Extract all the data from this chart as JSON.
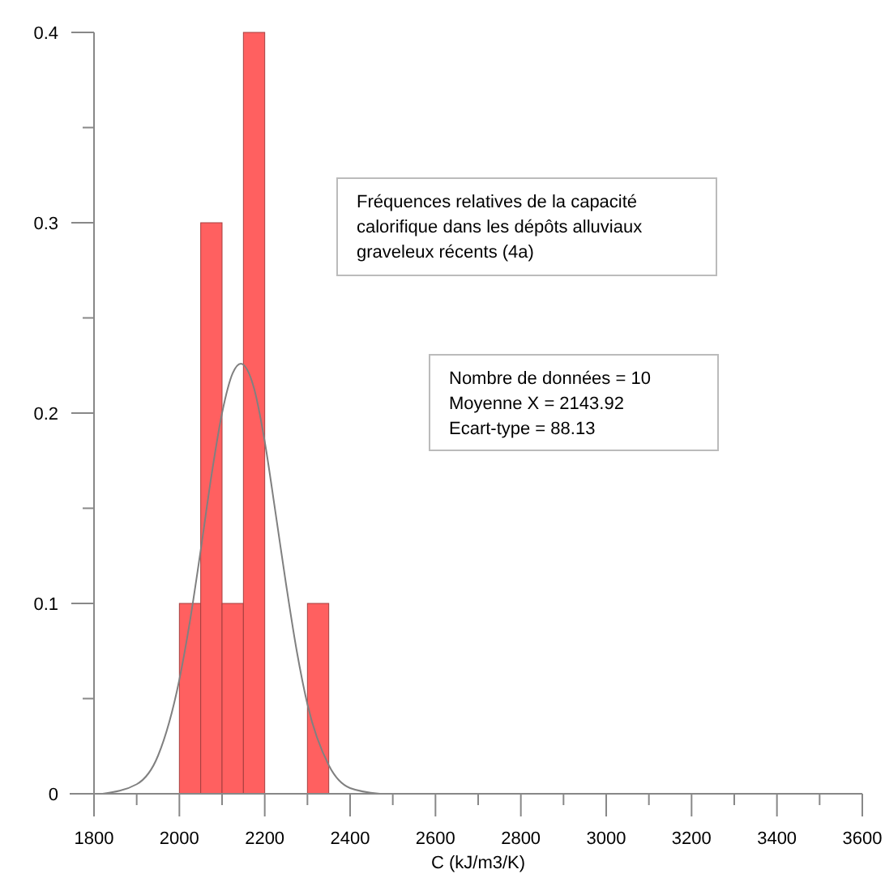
{
  "chart_data": {
    "type": "histogram",
    "xlabel": "C (kJ/m3/K)",
    "xlim": [
      1800,
      3600
    ],
    "ylim": [
      0,
      0.4
    ],
    "xticks": [
      1800,
      {
        "value": 1900,
        "label": null
      },
      2000,
      {
        "value": 2100,
        "label": null
      },
      2200,
      {
        "value": 2300,
        "label": null
      },
      2400,
      {
        "value": 2500,
        "label": null
      },
      2600,
      {
        "value": 2700,
        "label": null
      },
      2800,
      {
        "value": 2900,
        "label": null
      },
      3000,
      {
        "value": 3100,
        "label": null
      },
      3200,
      {
        "value": 3300,
        "label": null
      },
      3400,
      {
        "value": 3500,
        "label": null
      },
      3600
    ],
    "yticks": [
      0,
      {
        "value": 0.05,
        "label": null
      },
      0.1,
      {
        "value": 0.15,
        "label": null
      },
      0.2,
      {
        "value": 0.25,
        "label": null
      },
      0.3,
      {
        "value": 0.35,
        "label": null
      },
      0.4
    ],
    "grid": false,
    "series": [
      {
        "color": "#ff6060",
        "bins": [
          2000,
          2050,
          2100,
          2150,
          2200,
          2250,
          2300,
          2350
        ],
        "values": [
          0.1,
          0.3,
          0.1,
          0.4,
          0,
          0,
          0.1
        ]
      },
      {
        "type": "line",
        "color": "#808080",
        "marker": "none",
        "x": [
          1820,
          1900,
          1950,
          2000,
          2025,
          2050,
          2075,
          2100,
          2125,
          2144,
          2175,
          2200,
          2225,
          2250,
          2275,
          2300,
          2350,
          2400,
          2470
        ],
        "values": [
          0,
          0.005,
          0.02,
          0.06,
          0.091,
          0.128,
          0.167,
          0.2,
          0.221,
          0.226,
          0.213,
          0.185,
          0.148,
          0.11,
          0.075,
          0.047,
          0.015,
          0.003,
          0
        ]
      }
    ],
    "annotations": [
      "Fréquences relatives de la capacité\ncalorifique dans les dépôts alluviaux\ngraveleux récents (4a)",
      "Nombre de données = 10\nMoyenne X = 2143.92\nEcart-type = 88.13"
    ]
  }
}
